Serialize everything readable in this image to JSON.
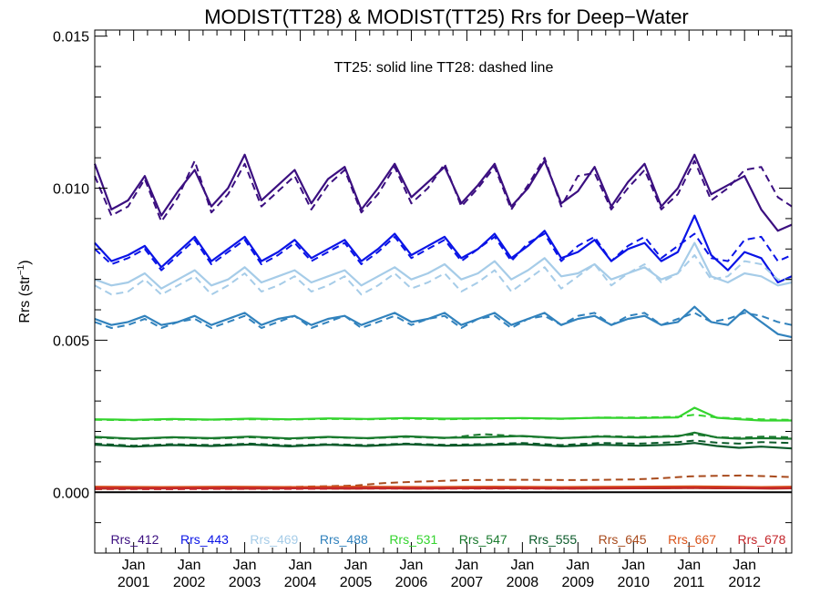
{
  "chart_data": {
    "type": "line",
    "title": "MODIST(TT28) & MODIST(TT25)  Rrs for Deep−Water",
    "ylabel": "Rrs (str",
    "ylabel_sup": "−1",
    "ylabel_close": ")",
    "xlabel": "",
    "annotation": "TT25: solid line   TT28: dashed line",
    "xlim": [
      2000.3,
      2012.85
    ],
    "ylim": [
      -0.002,
      0.0152
    ],
    "yticks": [
      {
        "value": 0.0,
        "label": "0.000"
      },
      {
        "value": 0.005,
        "label": "0.005"
      },
      {
        "value": 0.01,
        "label": "0.010"
      },
      {
        "value": 0.015,
        "label": "0.015"
      }
    ],
    "xticks": [
      {
        "value": 2001,
        "label_top": "Jan",
        "label_bottom": "2001"
      },
      {
        "value": 2002,
        "label_top": "Jan",
        "label_bottom": "2002"
      },
      {
        "value": 2003,
        "label_top": "Jan",
        "label_bottom": "2003"
      },
      {
        "value": 2004,
        "label_top": "Jan",
        "label_bottom": "2004"
      },
      {
        "value": 2005,
        "label_top": "Jan",
        "label_bottom": "2005"
      },
      {
        "value": 2006,
        "label_top": "Jan",
        "label_bottom": "2006"
      },
      {
        "value": 2007,
        "label_top": "Jan",
        "label_bottom": "2007"
      },
      {
        "value": 2008,
        "label_top": "Jan",
        "label_bottom": "2008"
      },
      {
        "value": 2009,
        "label_top": "Jan",
        "label_bottom": "2009"
      },
      {
        "value": 2010,
        "label_top": "Jan",
        "label_bottom": "2010"
      },
      {
        "value": 2011,
        "label_top": "Jan",
        "label_bottom": "2011"
      },
      {
        "value": 2012,
        "label_top": "Jan",
        "label_bottom": "2012"
      }
    ],
    "zero_line": true,
    "grid": false,
    "legend_position": "bottom",
    "series": [
      {
        "name": "Rrs_412",
        "color": "#3b0f80",
        "solid_offset": 0.0,
        "dashed_offset": 0.0,
        "x": [
          2000.3,
          2000.6,
          2000.9,
          2001.2,
          2001.5,
          2001.8,
          2002.1,
          2002.4,
          2002.7,
          2003.0,
          2003.3,
          2003.6,
          2003.9,
          2004.2,
          2004.5,
          2004.8,
          2005.1,
          2005.4,
          2005.7,
          2006.0,
          2006.3,
          2006.6,
          2006.9,
          2007.2,
          2007.5,
          2007.8,
          2008.1,
          2008.4,
          2008.7,
          2009.0,
          2009.3,
          2009.6,
          2009.9,
          2010.2,
          2010.5,
          2010.8,
          2011.1,
          2011.4,
          2011.7,
          2012.0,
          2012.3,
          2012.6,
          2012.85
        ],
        "solid": [
          0.0108,
          0.0093,
          0.0096,
          0.0104,
          0.0091,
          0.0099,
          0.0106,
          0.0094,
          0.01,
          0.0111,
          0.0096,
          0.0101,
          0.0106,
          0.0095,
          0.0103,
          0.0107,
          0.0093,
          0.01,
          0.0108,
          0.0097,
          0.0102,
          0.0107,
          0.0095,
          0.0101,
          0.0108,
          0.0094,
          0.01,
          0.0109,
          0.0095,
          0.0099,
          0.0107,
          0.0094,
          0.0102,
          0.0108,
          0.0094,
          0.01,
          0.0111,
          0.0098,
          0.0101,
          0.0104,
          0.0093,
          0.0086,
          0.0088
        ],
        "dashed": [
          0.0104,
          0.0091,
          0.0094,
          0.0103,
          0.0089,
          0.0097,
          0.0109,
          0.0092,
          0.0098,
          0.0108,
          0.0094,
          0.0099,
          0.0104,
          0.0093,
          0.0101,
          0.0106,
          0.0092,
          0.0098,
          0.0107,
          0.0095,
          0.01,
          0.0108,
          0.0094,
          0.01,
          0.0107,
          0.0093,
          0.0101,
          0.011,
          0.0094,
          0.0104,
          0.0105,
          0.0093,
          0.01,
          0.0106,
          0.0093,
          0.0098,
          0.0109,
          0.0096,
          0.01,
          0.0106,
          0.0107,
          0.0097,
          0.0094
        ]
      },
      {
        "name": "Rrs_443",
        "color": "#0a14e6",
        "solid_offset": 0.0,
        "dashed_offset": 0.0,
        "x": [
          2000.3,
          2000.6,
          2000.9,
          2001.2,
          2001.5,
          2001.8,
          2002.1,
          2002.4,
          2002.7,
          2003.0,
          2003.3,
          2003.6,
          2003.9,
          2004.2,
          2004.5,
          2004.8,
          2005.1,
          2005.4,
          2005.7,
          2006.0,
          2006.3,
          2006.6,
          2006.9,
          2007.2,
          2007.5,
          2007.8,
          2008.1,
          2008.4,
          2008.7,
          2009.0,
          2009.3,
          2009.6,
          2009.9,
          2010.2,
          2010.5,
          2010.8,
          2011.1,
          2011.4,
          2011.7,
          2012.0,
          2012.3,
          2012.6,
          2012.85
        ],
        "solid": [
          0.0082,
          0.0076,
          0.0078,
          0.0081,
          0.0074,
          0.0079,
          0.0084,
          0.0076,
          0.008,
          0.0084,
          0.0076,
          0.0079,
          0.0083,
          0.0077,
          0.008,
          0.0083,
          0.0076,
          0.008,
          0.0085,
          0.0078,
          0.0081,
          0.0084,
          0.0077,
          0.008,
          0.0085,
          0.0077,
          0.0081,
          0.0086,
          0.0077,
          0.0079,
          0.0083,
          0.0076,
          0.008,
          0.0082,
          0.0076,
          0.0079,
          0.0091,
          0.0078,
          0.0073,
          0.0079,
          0.0077,
          0.0069,
          0.0071
        ],
        "dashed": [
          0.008,
          0.0075,
          0.0077,
          0.008,
          0.0073,
          0.0078,
          0.0083,
          0.0075,
          0.0079,
          0.0083,
          0.0075,
          0.0078,
          0.0082,
          0.0076,
          0.0079,
          0.0082,
          0.0075,
          0.0079,
          0.0084,
          0.0077,
          0.008,
          0.0083,
          0.0076,
          0.008,
          0.0084,
          0.0076,
          0.0082,
          0.0085,
          0.0076,
          0.0081,
          0.0084,
          0.0076,
          0.0081,
          0.0084,
          0.0077,
          0.0081,
          0.0085,
          0.0077,
          0.0076,
          0.0083,
          0.0084,
          0.0076,
          0.0078
        ]
      },
      {
        "name": "Rrs_469",
        "color": "#a6cce8",
        "solid_offset": 0.0,
        "dashed_offset": 0.0,
        "x": [
          2000.3,
          2000.6,
          2000.9,
          2001.2,
          2001.5,
          2001.8,
          2002.1,
          2002.4,
          2002.7,
          2003.0,
          2003.3,
          2003.6,
          2003.9,
          2004.2,
          2004.5,
          2004.8,
          2005.1,
          2005.4,
          2005.7,
          2006.0,
          2006.3,
          2006.6,
          2006.9,
          2007.2,
          2007.5,
          2007.8,
          2008.1,
          2008.4,
          2008.7,
          2009.0,
          2009.3,
          2009.6,
          2009.9,
          2010.2,
          2010.5,
          2010.8,
          2011.1,
          2011.4,
          2011.7,
          2012.0,
          2012.3,
          2012.6,
          2012.85
        ],
        "solid": [
          0.007,
          0.0068,
          0.0069,
          0.0072,
          0.0067,
          0.007,
          0.0073,
          0.0068,
          0.007,
          0.0074,
          0.0069,
          0.0071,
          0.0073,
          0.0069,
          0.0071,
          0.0073,
          0.0068,
          0.0071,
          0.0074,
          0.007,
          0.0072,
          0.0075,
          0.007,
          0.0072,
          0.0076,
          0.007,
          0.0073,
          0.0077,
          0.0071,
          0.0072,
          0.0075,
          0.007,
          0.0072,
          0.0074,
          0.007,
          0.0072,
          0.0082,
          0.0071,
          0.0069,
          0.0072,
          0.0071,
          0.0068,
          0.0069
        ],
        "dashed": [
          0.0068,
          0.0065,
          0.0066,
          0.007,
          0.0065,
          0.0068,
          0.0071,
          0.0065,
          0.0068,
          0.0072,
          0.0066,
          0.0068,
          0.0071,
          0.0066,
          0.0068,
          0.0071,
          0.0065,
          0.0068,
          0.0072,
          0.0067,
          0.0069,
          0.0072,
          0.0066,
          0.0069,
          0.0073,
          0.0066,
          0.007,
          0.0074,
          0.0067,
          0.0071,
          0.0075,
          0.0068,
          0.0072,
          0.0075,
          0.0069,
          0.0072,
          0.0078,
          0.007,
          0.0071,
          0.0076,
          0.0075,
          0.007,
          0.007
        ]
      },
      {
        "name": "Rrs_488",
        "color": "#3182bd",
        "solid_offset": 0.0,
        "dashed_offset": 0.0,
        "x": [
          2000.3,
          2000.6,
          2000.9,
          2001.2,
          2001.5,
          2001.8,
          2002.1,
          2002.4,
          2002.7,
          2003.0,
          2003.3,
          2003.6,
          2003.9,
          2004.2,
          2004.5,
          2004.8,
          2005.1,
          2005.4,
          2005.7,
          2006.0,
          2006.3,
          2006.6,
          2006.9,
          2007.2,
          2007.5,
          2007.8,
          2008.1,
          2008.4,
          2008.7,
          2009.0,
          2009.3,
          2009.6,
          2009.9,
          2010.2,
          2010.5,
          2010.8,
          2011.1,
          2011.4,
          2011.7,
          2012.0,
          2012.3,
          2012.6,
          2012.85
        ],
        "solid": [
          0.0057,
          0.0055,
          0.0056,
          0.0058,
          0.0055,
          0.0056,
          0.0058,
          0.0055,
          0.0057,
          0.0059,
          0.0055,
          0.0057,
          0.0058,
          0.0055,
          0.0057,
          0.0058,
          0.0055,
          0.0057,
          0.0059,
          0.0056,
          0.0057,
          0.0059,
          0.0055,
          0.0057,
          0.0059,
          0.0055,
          0.0057,
          0.0059,
          0.0055,
          0.0057,
          0.0058,
          0.0055,
          0.0057,
          0.0058,
          0.0055,
          0.0056,
          0.0061,
          0.0056,
          0.0055,
          0.006,
          0.0056,
          0.0052,
          0.0051
        ],
        "dashed": [
          0.0056,
          0.0054,
          0.0055,
          0.0057,
          0.0054,
          0.0056,
          0.0057,
          0.0054,
          0.0056,
          0.0058,
          0.0054,
          0.0056,
          0.0058,
          0.0054,
          0.0056,
          0.0058,
          0.0054,
          0.0056,
          0.0058,
          0.0055,
          0.0057,
          0.0058,
          0.0054,
          0.0057,
          0.0058,
          0.0054,
          0.0057,
          0.0058,
          0.0055,
          0.0058,
          0.0059,
          0.0055,
          0.0058,
          0.0059,
          0.0055,
          0.0057,
          0.0059,
          0.0056,
          0.0057,
          0.0059,
          0.0058,
          0.0056,
          0.0055
        ]
      },
      {
        "name": "Rrs_531",
        "color": "#34d42e",
        "solid_offset": 0.0,
        "dashed_offset": 0.0,
        "x": [
          2000.3,
          2001.0,
          2001.7,
          2002.4,
          2003.1,
          2003.8,
          2004.5,
          2005.2,
          2005.9,
          2006.6,
          2007.3,
          2008.0,
          2008.7,
          2009.4,
          2010.1,
          2010.8,
          2011.1,
          2011.5,
          2011.9,
          2012.3,
          2012.85
        ],
        "solid": [
          0.0024,
          0.00238,
          0.00241,
          0.00239,
          0.00242,
          0.0024,
          0.00243,
          0.00241,
          0.00244,
          0.00242,
          0.00243,
          0.00244,
          0.00242,
          0.00245,
          0.00244,
          0.00246,
          0.00278,
          0.00245,
          0.0024,
          0.00236,
          0.00236
        ],
        "dashed": [
          0.00238,
          0.00237,
          0.00239,
          0.00238,
          0.0024,
          0.00239,
          0.00241,
          0.0024,
          0.00242,
          0.0024,
          0.00242,
          0.00243,
          0.00241,
          0.00246,
          0.00246,
          0.00248,
          0.00255,
          0.00246,
          0.00243,
          0.0024,
          0.00238
        ]
      },
      {
        "name": "Rrs_547",
        "color": "#1a7a2e",
        "solid_offset": 0.0,
        "dashed_offset": 0.0,
        "x": [
          2000.3,
          2001.0,
          2001.7,
          2002.4,
          2003.1,
          2003.8,
          2004.5,
          2005.2,
          2005.9,
          2006.6,
          2007.3,
          2008.0,
          2008.7,
          2009.4,
          2010.1,
          2010.8,
          2011.1,
          2011.5,
          2011.9,
          2012.3,
          2012.85
        ],
        "solid": [
          0.00182,
          0.00176,
          0.00181,
          0.00178,
          0.00183,
          0.00177,
          0.00182,
          0.00178,
          0.00184,
          0.00179,
          0.00181,
          0.00185,
          0.00178,
          0.00183,
          0.0018,
          0.00184,
          0.00196,
          0.0018,
          0.00176,
          0.00178,
          0.00176
        ],
        "dashed": [
          0.0018,
          0.00175,
          0.0018,
          0.00176,
          0.00181,
          0.00175,
          0.00181,
          0.00177,
          0.00182,
          0.00178,
          0.00191,
          0.00184,
          0.00177,
          0.00185,
          0.00182,
          0.00186,
          0.0019,
          0.00181,
          0.00179,
          0.00183,
          0.00181
        ]
      },
      {
        "name": "Rrs_555",
        "color": "#0b5a2a",
        "solid_offset": 0.0,
        "dashed_offset": 0.0,
        "x": [
          2000.3,
          2001.0,
          2001.7,
          2002.4,
          2003.1,
          2003.8,
          2004.5,
          2005.2,
          2005.9,
          2006.6,
          2007.3,
          2008.0,
          2008.7,
          2009.4,
          2010.1,
          2010.8,
          2011.1,
          2011.5,
          2011.9,
          2012.3,
          2012.85
        ],
        "solid": [
          0.00156,
          0.0015,
          0.00155,
          0.00152,
          0.00157,
          0.00151,
          0.00156,
          0.00152,
          0.00158,
          0.00153,
          0.00155,
          0.00158,
          0.00151,
          0.00156,
          0.00153,
          0.00157,
          0.00162,
          0.00152,
          0.00146,
          0.0015,
          0.00144
        ],
        "dashed": [
          0.0016,
          0.00153,
          0.00158,
          0.00155,
          0.0016,
          0.00154,
          0.00158,
          0.00155,
          0.0016,
          0.00156,
          0.00158,
          0.00162,
          0.00155,
          0.00162,
          0.0016,
          0.00165,
          0.0017,
          0.00163,
          0.0016,
          0.00165,
          0.00162
        ]
      },
      {
        "name": "Rrs_645",
        "color": "#a84a1c",
        "solid_offset": 0.0,
        "dashed_offset": 0.0,
        "x": [
          2000.3,
          2001.0,
          2002.0,
          2003.0,
          2004.0,
          2005.0,
          2005.5,
          2006.0,
          2007.0,
          2008.0,
          2009.0,
          2010.0,
          2010.5,
          2011.0,
          2011.5,
          2012.0,
          2012.5,
          2012.85
        ],
        "solid": [
          0.00012,
          0.00012,
          0.00013,
          0.00012,
          0.00013,
          0.00012,
          0.00013,
          0.00012,
          0.00013,
          0.00013,
          0.00012,
          0.00013,
          0.00013,
          0.00014,
          0.00013,
          0.00013,
          0.00012,
          0.00013
        ],
        "dashed": [
          0.0001,
          0.00011,
          0.00013,
          0.00015,
          0.00018,
          0.00022,
          0.0003,
          0.00034,
          0.0004,
          0.00041,
          0.0004,
          0.00042,
          0.00046,
          0.00052,
          0.00054,
          0.00055,
          0.00052,
          0.0005
        ]
      },
      {
        "name": "Rrs_667",
        "color": "#d9531a",
        "solid_offset": 0.0,
        "dashed_offset": 0.0,
        "x": [
          2000.3,
          2001.5,
          2002.7,
          2003.9,
          2005.1,
          2006.3,
          2007.5,
          2008.7,
          2009.9,
          2011.1,
          2012.3,
          2012.85
        ],
        "solid": [
          0.00018,
          0.00017,
          0.00018,
          0.00017,
          0.00018,
          0.00017,
          0.00018,
          0.00017,
          0.00018,
          0.00019,
          0.00017,
          0.00018
        ],
        "dashed": [
          0.00013,
          0.00012,
          0.00013,
          0.00013,
          0.00014,
          0.00014,
          0.00015,
          0.00015,
          0.00016,
          0.00017,
          0.00016,
          0.00016
        ]
      },
      {
        "name": "Rrs_678",
        "color": "#c4262b",
        "solid_offset": 0.0,
        "dashed_offset": 0.0,
        "x": [
          2000.3,
          2001.5,
          2002.7,
          2003.9,
          2005.1,
          2006.3,
          2007.5,
          2008.7,
          2009.9,
          2011.1,
          2012.3,
          2012.85
        ],
        "solid": [
          0.00014,
          0.00013,
          0.00014,
          0.00013,
          0.00014,
          0.00013,
          0.00014,
          0.00013,
          0.00014,
          0.00015,
          0.00013,
          0.00014
        ],
        "dashed": [
          0.00011,
          0.0001,
          0.00011,
          0.00011,
          0.00012,
          0.00012,
          0.00012,
          0.00012,
          0.00013,
          0.00014,
          0.00013,
          0.00013
        ]
      }
    ]
  }
}
